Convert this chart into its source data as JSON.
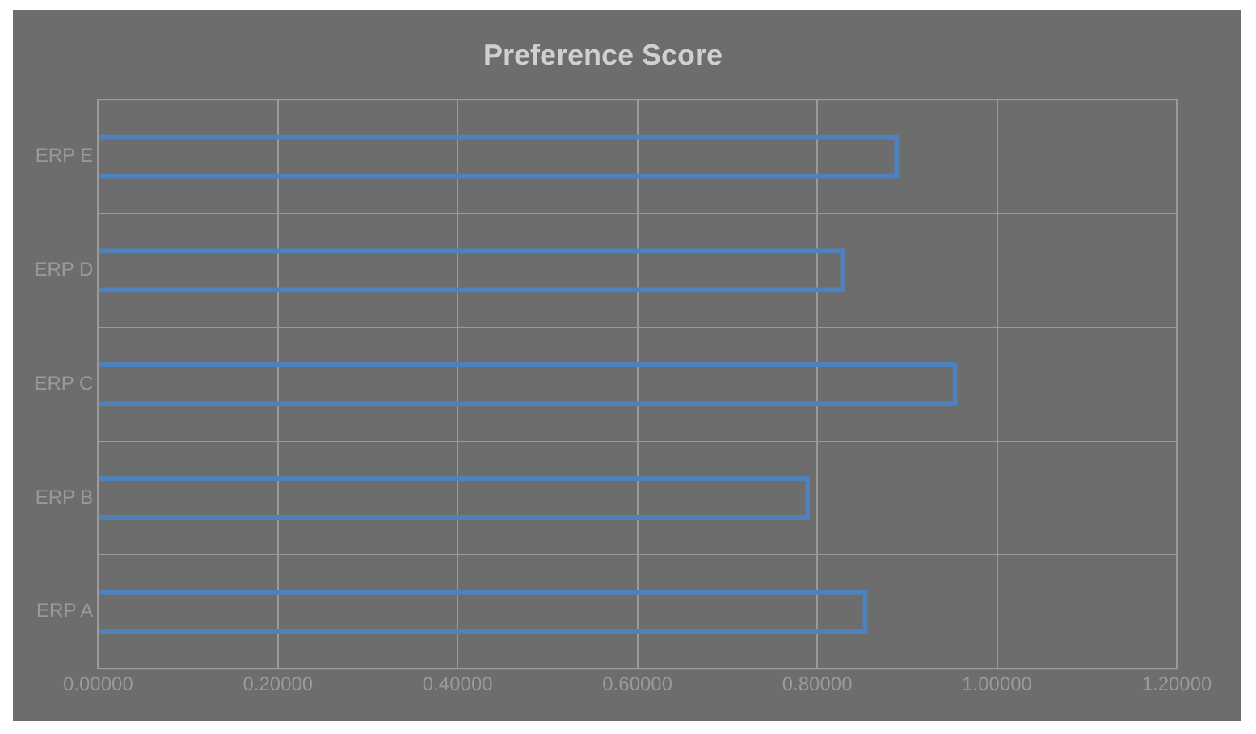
{
  "chart_data": {
    "type": "bar",
    "orientation": "horizontal",
    "title": "Preference Score",
    "categories": [
      "ERP E",
      "ERP D",
      "ERP C",
      "ERP B",
      "ERP A"
    ],
    "values": [
      0.891,
      0.831,
      0.956,
      0.792,
      0.856
    ],
    "color": "#4f81bd",
    "xlim": [
      0,
      1.2
    ],
    "xticks": [
      {
        "value": 0,
        "label": "0.00000"
      },
      {
        "value": 0.2,
        "label": "0.20000"
      },
      {
        "value": 0.4,
        "label": "0.40000"
      },
      {
        "value": 0.6,
        "label": "0.60000"
      },
      {
        "value": 0.8,
        "label": "0.80000"
      },
      {
        "value": 1,
        "label": "1.00000"
      },
      {
        "value": 1.2,
        "label": "1.20000"
      }
    ],
    "grid": true,
    "legend": false
  }
}
